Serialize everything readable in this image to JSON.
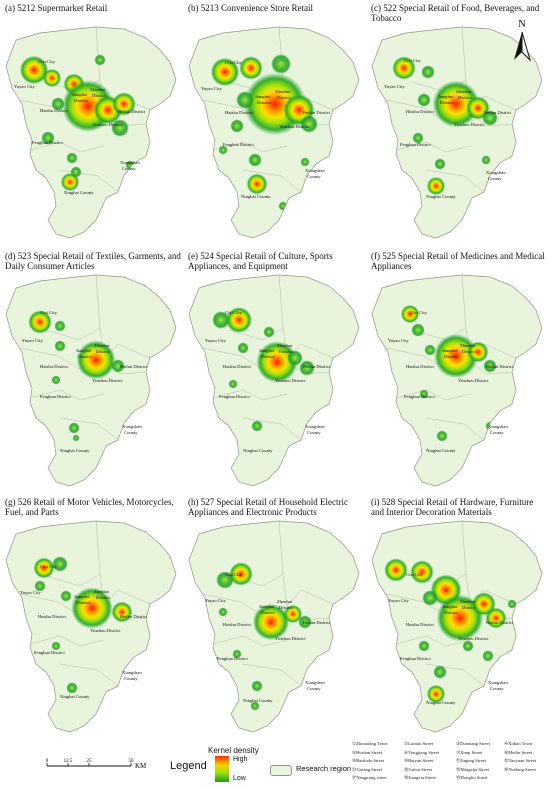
{
  "panels": [
    {
      "id": "a",
      "title": "(a) 5212 Supermarket Retail"
    },
    {
      "id": "b",
      "title": "(b) 5213 Convenience Store Retail"
    },
    {
      "id": "c",
      "title": "(c) 522 Special Retail of Food, Beverages, and Tobacco"
    },
    {
      "id": "d",
      "title": "(d) 523 Special Retail of Textiles, Garments, and Daily Consumer Articles"
    },
    {
      "id": "e",
      "title": "(e) 524 Special Retail of Culture, Sports Appliances, and Equipment"
    },
    {
      "id": "f",
      "title": "(f) 525 Special Retail of Medicines and Medical Appliances"
    },
    {
      "id": "g",
      "title": "(g) 526 Retail of Motor Vehicles, Motorcycles, Fuel, and Parts"
    },
    {
      "id": "h",
      "title": "(h) 527 Special Retail of Household Electric Appliances and Electronic Products"
    },
    {
      "id": "i",
      "title": "(i) 528 Special Retail of Hardware, Furniture and Interior Decoration Materials"
    }
  ],
  "place_labels": {
    "cixi": "Cixi City",
    "yuyao": "Yuyao City",
    "jiangbei": "Jiangbei",
    "zhenhai": "Zhenhai",
    "district": "District",
    "haishu": "Haishu District",
    "beilun": "Beilun District",
    "yinzhou": "Yinzhou District",
    "fenghua": "Fenghua District",
    "xiangshan": "Xiangshan",
    "county": "County",
    "ninghai": "Ninghai County"
  },
  "north": "N",
  "scale_bar": {
    "ticks": [
      "0",
      "12.5",
      "25",
      "50"
    ],
    "unit": "KM"
  },
  "legend": {
    "title": "Legend",
    "kernel_title": "Kernel density",
    "high": "High",
    "low": "Low",
    "research_region": "Research region",
    "colors": {
      "high": "#ff2a00",
      "mid": "#ffd200",
      "low": "#1f9a1f",
      "region": "#e8f4dc"
    }
  },
  "streets": [
    "①Zhouxiang Town",
    "②Luotuo Street",
    "③Duantang Street",
    "④Xidian Town",
    "⑤Hushan Street",
    "⑥Yongjiang Street",
    "⑦Xinqi Street",
    "⑧Meilin Street",
    "⑨Baishalu Street",
    "⑩Baiyun Street",
    "⑪Jinping Street",
    "⑫Taoyuan Street",
    "⑬Gutang Street",
    "⑭Gulou Street",
    "⑮Mingzhu Street",
    "⑯Yuelong Street",
    "⑰Yangming street",
    "⑱Jiangxia Street",
    "⑲Dongliu Street"
  ]
}
